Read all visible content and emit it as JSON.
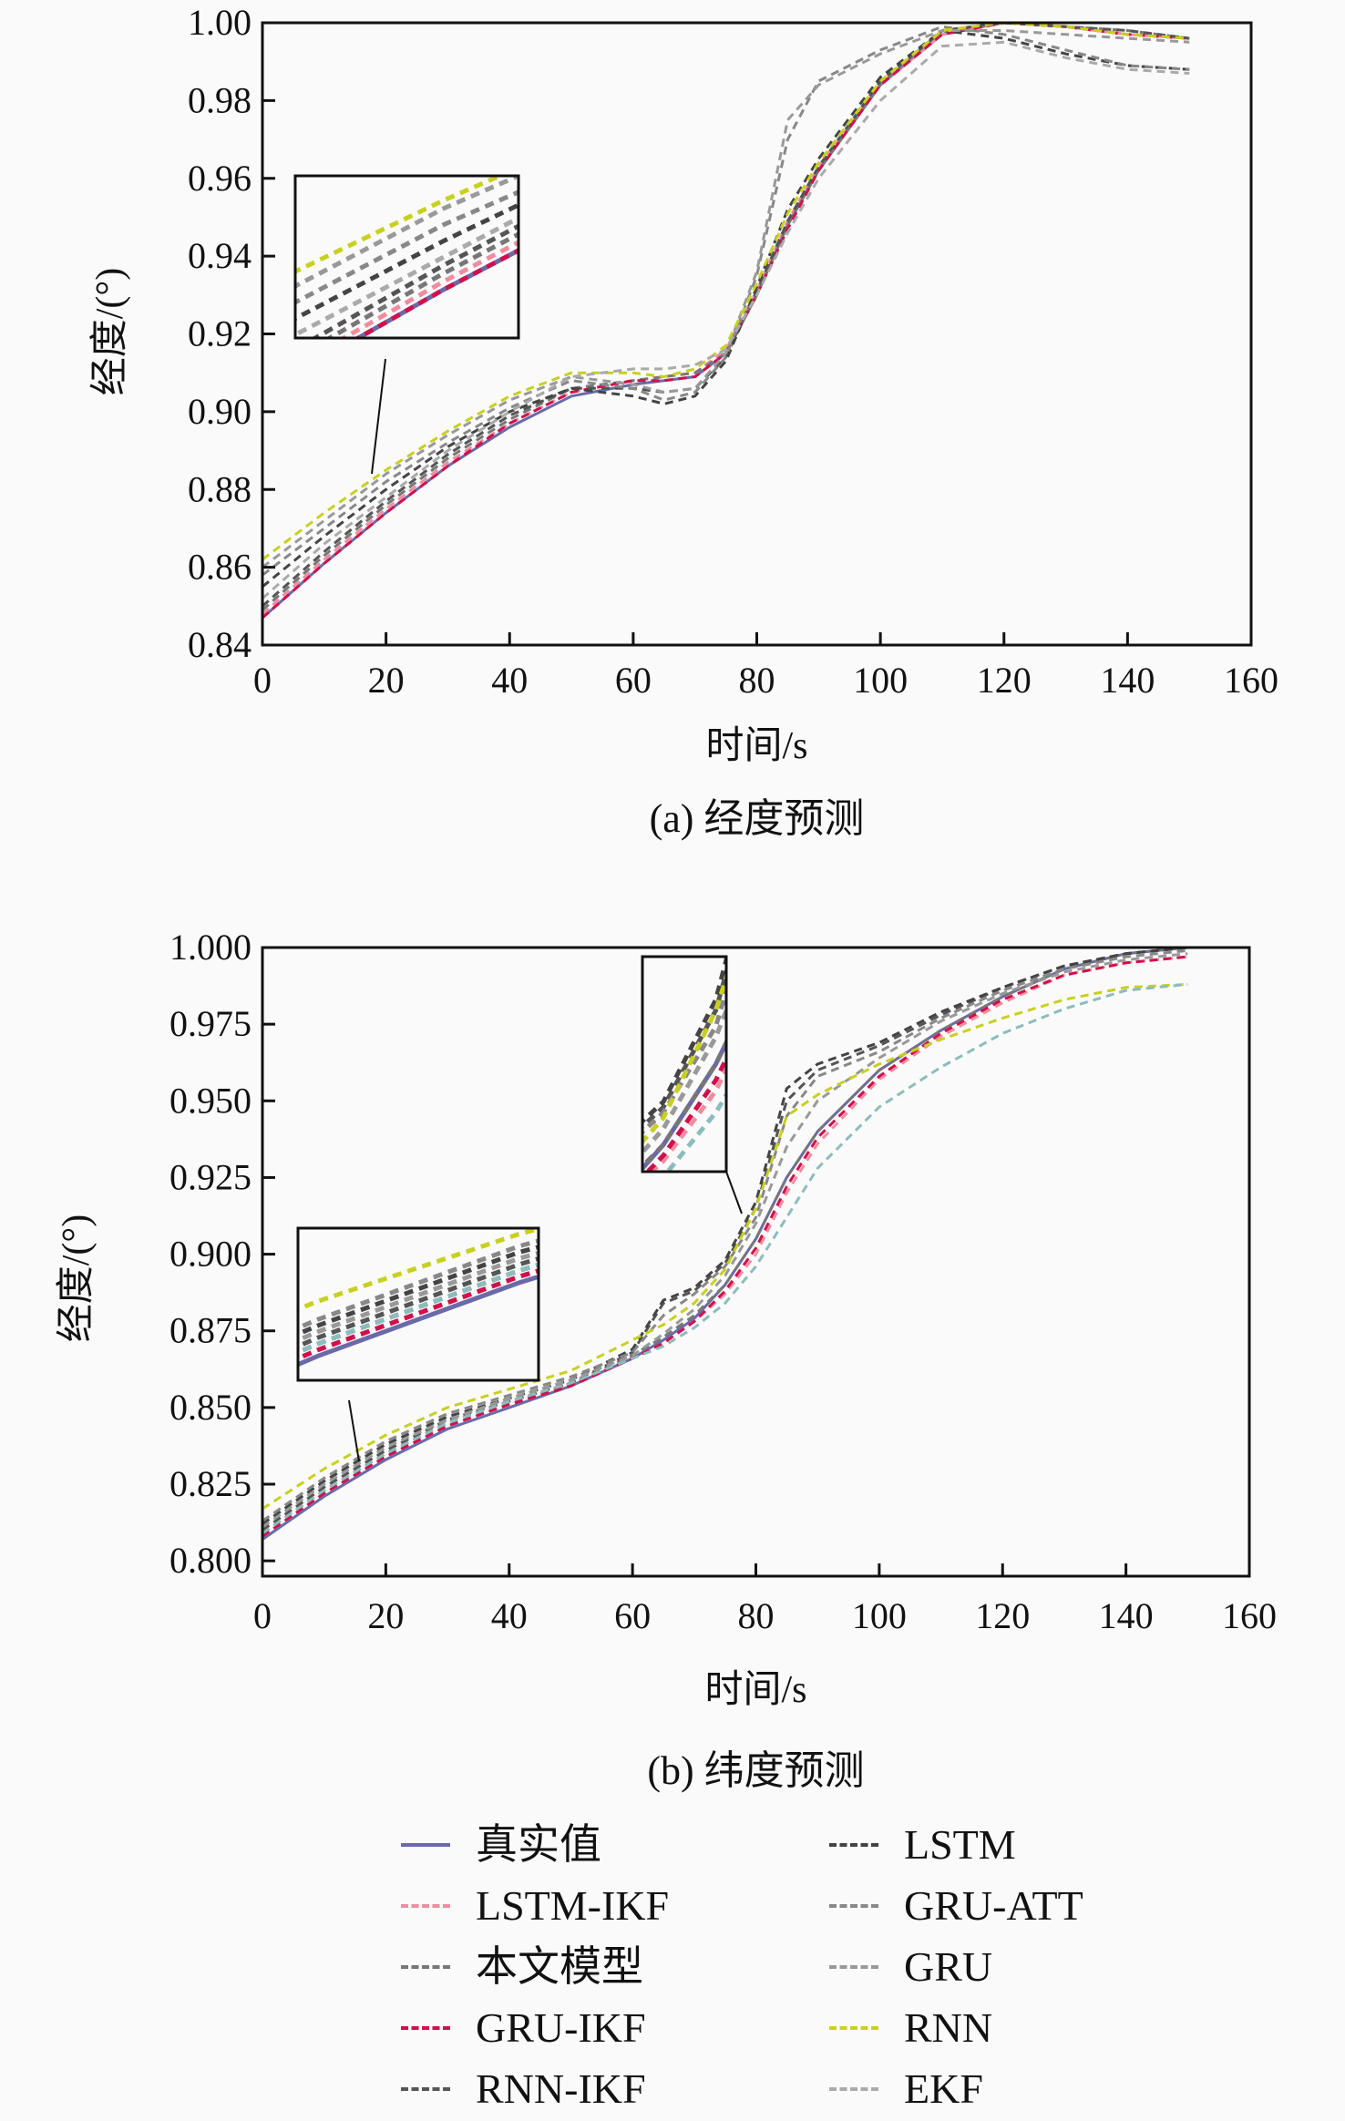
{
  "legend_title": "",
  "chart_data": [
    {
      "type": "line",
      "title": "(a) 经度预测",
      "xlabel": "时间/s",
      "ylabel": "经度/(°)",
      "xlim": [
        0,
        160
      ],
      "ylim": [
        0.84,
        1.0
      ],
      "xticks": [
        "0",
        "20",
        "40",
        "60",
        "80",
        "100",
        "120",
        "140",
        "160"
      ],
      "yticks": [
        "0.84",
        "0.86",
        "0.88",
        "0.90",
        "0.92",
        "0.94",
        "0.96",
        "0.98",
        "1.00"
      ],
      "grid": false,
      "x": [
        0,
        10,
        20,
        30,
        40,
        50,
        60,
        65,
        70,
        75,
        80,
        85,
        90,
        100,
        110,
        120,
        130,
        140,
        150
      ],
      "series": [
        {
          "name": "真实值",
          "color": "#6a6aa8",
          "style": "solid",
          "values": [
            0.847,
            0.861,
            0.874,
            0.886,
            0.896,
            0.904,
            0.907,
            0.908,
            0.909,
            0.915,
            0.93,
            0.948,
            0.962,
            0.984,
            0.997,
            1.0,
            0.999,
            0.997,
            0.996
          ]
        },
        {
          "name": "LSTM-IKF",
          "color": "#f08ca0",
          "style": "dashed",
          "values": [
            0.848,
            0.862,
            0.875,
            0.887,
            0.897,
            0.905,
            0.908,
            0.909,
            0.91,
            0.916,
            0.931,
            0.949,
            0.963,
            0.984,
            0.997,
            1.0,
            0.999,
            0.997,
            0.996
          ]
        },
        {
          "name": "本文模型",
          "color": "#777777",
          "style": "dashed",
          "values": [
            0.849,
            0.863,
            0.876,
            0.888,
            0.898,
            0.906,
            0.908,
            0.909,
            0.91,
            0.915,
            0.93,
            0.948,
            0.962,
            0.984,
            0.998,
            1.0,
            0.999,
            0.998,
            0.996
          ]
        },
        {
          "name": "GRU-IKF",
          "color": "#d0104c",
          "style": "dashed",
          "values": [
            0.847,
            0.861,
            0.874,
            0.886,
            0.897,
            0.905,
            0.908,
            0.908,
            0.909,
            0.915,
            0.93,
            0.947,
            0.962,
            0.984,
            0.997,
            1.0,
            0.999,
            0.997,
            0.996
          ]
        },
        {
          "name": "RNN-IKF",
          "color": "#555555",
          "style": "dashed",
          "values": [
            0.85,
            0.864,
            0.877,
            0.889,
            0.899,
            0.906,
            0.906,
            0.905,
            0.906,
            0.914,
            0.931,
            0.949,
            0.963,
            0.985,
            0.998,
            1.0,
            0.999,
            0.998,
            0.996
          ]
        },
        {
          "name": "LSTM",
          "color": "#444444",
          "style": "dashed",
          "values": [
            0.855,
            0.868,
            0.88,
            0.891,
            0.9,
            0.906,
            0.904,
            0.902,
            0.904,
            0.913,
            0.932,
            0.952,
            0.965,
            0.986,
            0.998,
            0.996,
            0.992,
            0.989,
            0.988
          ]
        },
        {
          "name": "GRU-ATT",
          "color": "#888888",
          "style": "dashed",
          "values": [
            0.858,
            0.87,
            0.882,
            0.892,
            0.901,
            0.908,
            0.906,
            0.903,
            0.905,
            0.914,
            0.935,
            0.97,
            0.985,
            0.993,
            0.999,
            0.997,
            0.993,
            0.989,
            0.988
          ]
        },
        {
          "name": "GRU",
          "color": "#999999",
          "style": "dashed",
          "values": [
            0.86,
            0.872,
            0.884,
            0.894,
            0.903,
            0.909,
            0.907,
            0.905,
            0.906,
            0.915,
            0.936,
            0.975,
            0.984,
            0.992,
            0.998,
            0.998,
            0.997,
            0.996,
            0.995
          ]
        },
        {
          "name": "RNN",
          "color": "#c8d020",
          "style": "dashed",
          "values": [
            0.862,
            0.874,
            0.885,
            0.895,
            0.904,
            0.91,
            0.91,
            0.909,
            0.911,
            0.917,
            0.933,
            0.951,
            0.964,
            0.985,
            0.998,
            1.0,
            0.999,
            0.997,
            0.996
          ]
        },
        {
          "name": "EKF",
          "color": "#aaaaaa",
          "style": "dashed",
          "values": [
            0.852,
            0.866,
            0.878,
            0.89,
            0.9,
            0.909,
            0.911,
            0.911,
            0.912,
            0.916,
            0.93,
            0.946,
            0.96,
            0.98,
            0.994,
            0.995,
            0.991,
            0.988,
            0.987
          ]
        }
      ]
    },
    {
      "type": "line",
      "title": "(b) 纬度预测",
      "xlabel": "时间/s",
      "ylabel": "经度/(°)",
      "xlim": [
        0,
        160
      ],
      "ylim": [
        0.795,
        1.0
      ],
      "xticks": [
        "0",
        "20",
        "40",
        "60",
        "80",
        "100",
        "120",
        "140",
        "160"
      ],
      "yticks": [
        "0.800",
        "0.825",
        "0.850",
        "0.875",
        "0.900",
        "0.925",
        "0.950",
        "0.975",
        "1.000"
      ],
      "grid": false,
      "x": [
        0,
        10,
        20,
        30,
        40,
        50,
        60,
        65,
        70,
        75,
        80,
        85,
        90,
        100,
        110,
        120,
        130,
        140,
        150
      ],
      "series": [
        {
          "name": "真实值",
          "color": "#6a6aa8",
          "style": "solid",
          "values": [
            0.807,
            0.821,
            0.833,
            0.843,
            0.85,
            0.857,
            0.866,
            0.872,
            0.879,
            0.89,
            0.905,
            0.925,
            0.94,
            0.96,
            0.973,
            0.984,
            0.993,
            0.998,
            1.0
          ]
        },
        {
          "name": "LSTM-IKF",
          "color": "#f08ca0",
          "style": "dashed",
          "values": [
            0.808,
            0.822,
            0.834,
            0.844,
            0.851,
            0.858,
            0.866,
            0.871,
            0.878,
            0.887,
            0.9,
            0.92,
            0.936,
            0.957,
            0.971,
            0.982,
            0.991,
            0.995,
            0.997
          ]
        },
        {
          "name": "本文模型",
          "color": "#777777",
          "style": "dashed",
          "values": [
            0.809,
            0.823,
            0.835,
            0.845,
            0.852,
            0.858,
            0.867,
            0.873,
            0.88,
            0.89,
            0.905,
            0.925,
            0.94,
            0.96,
            0.973,
            0.984,
            0.993,
            0.998,
            1.0
          ]
        },
        {
          "name": "GRU-IKF",
          "color": "#d0104c",
          "style": "dashed",
          "values": [
            0.808,
            0.822,
            0.834,
            0.844,
            0.851,
            0.857,
            0.866,
            0.871,
            0.878,
            0.888,
            0.902,
            0.922,
            0.938,
            0.958,
            0.972,
            0.983,
            0.991,
            0.995,
            0.997
          ]
        },
        {
          "name": "RNN-IKF",
          "color": "#555555",
          "style": "dashed",
          "values": [
            0.81,
            0.824,
            0.836,
            0.846,
            0.852,
            0.858,
            0.868,
            0.884,
            0.888,
            0.897,
            0.915,
            0.95,
            0.96,
            0.968,
            0.978,
            0.987,
            0.994,
            0.998,
            1.0
          ]
        },
        {
          "name": "LSTM",
          "color": "#444444",
          "style": "dashed",
          "values": [
            0.812,
            0.826,
            0.838,
            0.847,
            0.853,
            0.859,
            0.869,
            0.885,
            0.889,
            0.898,
            0.917,
            0.954,
            0.962,
            0.969,
            0.979,
            0.987,
            0.994,
            0.998,
            1.0
          ]
        },
        {
          "name": "GRU-ATT",
          "color": "#888888",
          "style": "dashed",
          "values": [
            0.813,
            0.827,
            0.839,
            0.848,
            0.854,
            0.86,
            0.868,
            0.88,
            0.887,
            0.896,
            0.912,
            0.945,
            0.958,
            0.966,
            0.977,
            0.986,
            0.993,
            0.997,
            0.999
          ]
        },
        {
          "name": "GRU",
          "color": "#999999",
          "style": "dashed",
          "values": [
            0.811,
            0.825,
            0.837,
            0.846,
            0.853,
            0.859,
            0.867,
            0.874,
            0.882,
            0.893,
            0.91,
            0.935,
            0.95,
            0.964,
            0.976,
            0.985,
            0.992,
            0.996,
            0.998
          ]
        },
        {
          "name": "RNN",
          "color": "#c8d020",
          "style": "dashed",
          "values": [
            0.817,
            0.83,
            0.841,
            0.85,
            0.856,
            0.862,
            0.872,
            0.877,
            0.884,
            0.895,
            0.915,
            0.945,
            0.952,
            0.962,
            0.97,
            0.977,
            0.983,
            0.987,
            0.988
          ]
        },
        {
          "name": "EKF",
          "color": "#8cbcbc",
          "style": "dashed",
          "values": [
            0.809,
            0.823,
            0.835,
            0.845,
            0.852,
            0.858,
            0.866,
            0.87,
            0.876,
            0.884,
            0.896,
            0.912,
            0.928,
            0.948,
            0.961,
            0.972,
            0.98,
            0.986,
            0.988
          ]
        }
      ]
    }
  ]
}
